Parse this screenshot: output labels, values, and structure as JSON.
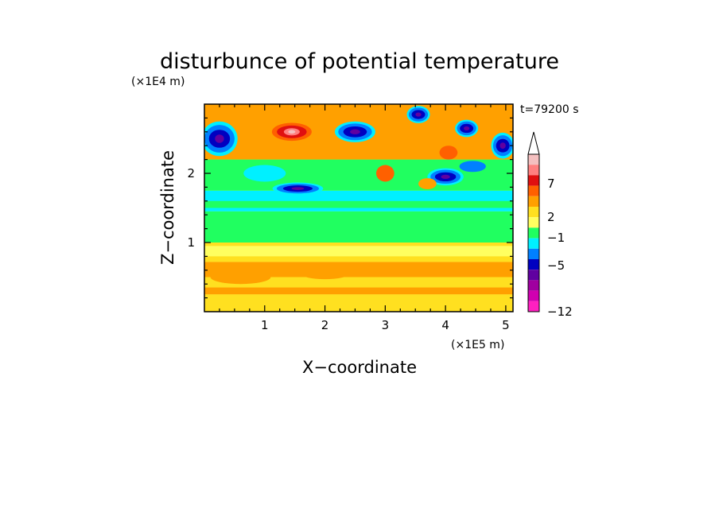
{
  "chart_data": {
    "type": "heatmap",
    "title": "disturbunce of potential temperature",
    "time_label": "t=79200 s",
    "xlabel": "X−coordinate",
    "ylabel": "Z−coordinate",
    "x_unit": "(×1E5 m)",
    "y_unit": "(×1E4 m)",
    "xlim": [
      0,
      5.12
    ],
    "ylim": [
      0,
      3.0
    ],
    "x_ticks": [
      "1",
      "2",
      "3",
      "4",
      "5"
    ],
    "y_ticks": [
      "1",
      "2"
    ],
    "colorbar": {
      "labels": [
        "7",
        "2",
        "−1",
        "−5",
        "−12"
      ],
      "colors": [
        "#f4c0c0",
        "#ff8080",
        "#e01010",
        "#ff6000",
        "#ffa000",
        "#ffe020",
        "#ffff60",
        "#20ff60",
        "#00f0ff",
        "#0080ff",
        "#0000c0",
        "#6000a0",
        "#a000a0",
        "#d000b0",
        "#ff20c0"
      ],
      "extend": "max"
    },
    "features": [
      {
        "x": 1.45,
        "z": 2.6,
        "value": 8,
        "rx": 0.33,
        "rz": 0.13
      },
      {
        "x": 1.0,
        "z": 2.0,
        "value": -1,
        "rx": 0.35,
        "rz": 0.12
      },
      {
        "x": 1.55,
        "z": 1.78,
        "value": -5,
        "rx": 0.35,
        "rz": 0.07
      },
      {
        "x": 0.25,
        "z": 2.5,
        "value": -5,
        "rx": 0.25,
        "rz": 0.2
      },
      {
        "x": 2.5,
        "z": 2.6,
        "value": -5,
        "rx": 0.28,
        "rz": 0.12
      },
      {
        "x": 3.55,
        "z": 2.85,
        "value": -5,
        "rx": 0.16,
        "rz": 0.1
      },
      {
        "x": 4.35,
        "z": 2.65,
        "value": -5,
        "rx": 0.16,
        "rz": 0.1
      },
      {
        "x": 4.95,
        "z": 2.4,
        "value": -5,
        "rx": 0.16,
        "rz": 0.15
      },
      {
        "x": 4.0,
        "z": 1.95,
        "value": -5,
        "rx": 0.25,
        "rz": 0.1
      },
      {
        "x": 4.45,
        "z": 2.1,
        "value": -3,
        "rx": 0.22,
        "rz": 0.08
      },
      {
        "x": 3.4,
        "z": 2.35,
        "value": 3,
        "rx": 0.2,
        "rz": 0.1
      },
      {
        "x": 4.05,
        "z": 2.3,
        "value": 5,
        "rx": 0.15,
        "rz": 0.1
      },
      {
        "x": 3.0,
        "z": 2.0,
        "value": 5,
        "rx": 0.15,
        "rz": 0.12
      },
      {
        "x": 3.7,
        "z": 1.85,
        "value": 4,
        "rx": 0.15,
        "rz": 0.08
      },
      {
        "x": 0.6,
        "z": 0.5,
        "value": 4,
        "rx": 0.5,
        "rz": 0.1
      },
      {
        "x": 2.0,
        "z": 0.55,
        "value": 4,
        "rx": 0.4,
        "rz": 0.08
      }
    ]
  }
}
